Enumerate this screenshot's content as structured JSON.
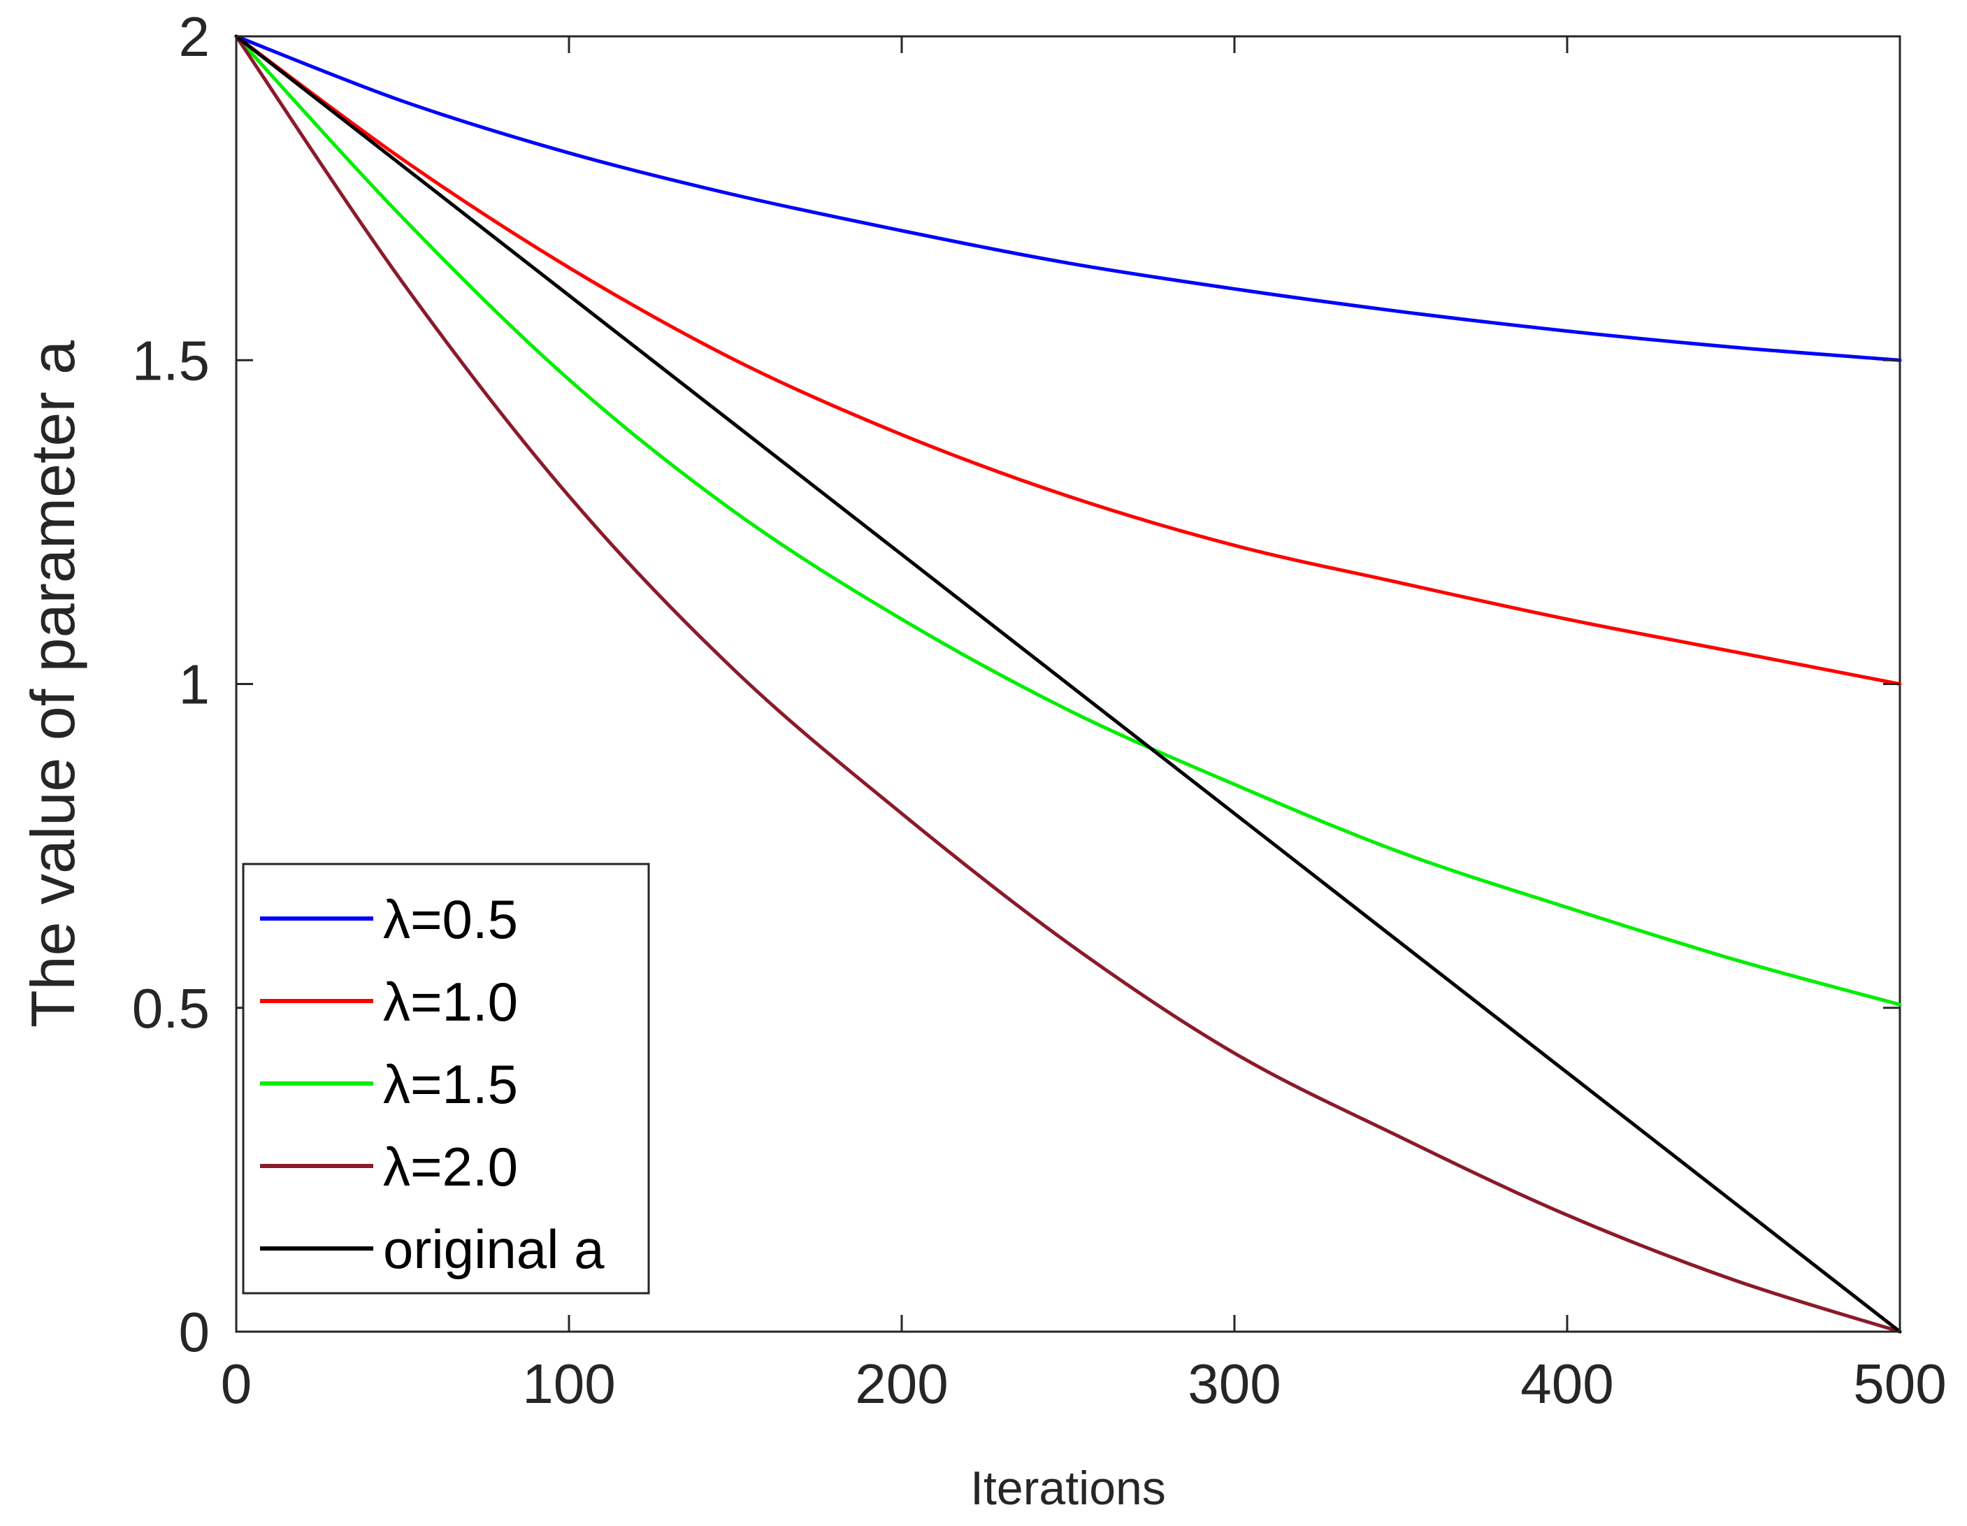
{
  "chart_data": {
    "type": "line",
    "title": "",
    "xlabel": "Iterations",
    "ylabel": "The value of parameter a",
    "xlim": [
      0,
      500
    ],
    "ylim": [
      0,
      2
    ],
    "xticks": [
      0,
      100,
      200,
      300,
      400,
      500
    ],
    "xtick_labels": [
      "0",
      "100",
      "200",
      "300",
      "400",
      "500"
    ],
    "yticks": [
      0,
      0.5,
      1,
      1.5,
      2
    ],
    "ytick_labels": [
      "0",
      "0.5",
      "1",
      "1.5",
      "2"
    ],
    "grid": false,
    "legend_position": "bottom-left",
    "x": [
      0,
      50,
      100,
      150,
      200,
      250,
      300,
      350,
      400,
      450,
      500
    ],
    "series": [
      {
        "name": "λ=0.5",
        "color": "#0000ff",
        "values": [
          2.0,
          1.9,
          1.82,
          1.755,
          1.7,
          1.65,
          1.61,
          1.575,
          1.545,
          1.52,
          1.5
        ]
      },
      {
        "name": "λ=1.0",
        "color": "#ff0000",
        "values": [
          2.0,
          1.81,
          1.643,
          1.5,
          1.385,
          1.29,
          1.214,
          1.156,
          1.1,
          1.05,
          1.0
        ]
      },
      {
        "name": "λ=1.5",
        "color": "#00ee00",
        "values": [
          2.0,
          1.72,
          1.47,
          1.265,
          1.1,
          0.96,
          0.845,
          0.74,
          0.655,
          0.575,
          0.505
        ]
      },
      {
        "name": "λ=2.0",
        "color": "#8b1a2a",
        "values": [
          2.0,
          1.62,
          1.29,
          1.02,
          0.8,
          0.6,
          0.43,
          0.3,
          0.18,
          0.08,
          0.0
        ]
      },
      {
        "name": "original a",
        "color": "#000000",
        "values": [
          2.0,
          1.8,
          1.6,
          1.4,
          1.2,
          1.0,
          0.8,
          0.6,
          0.4,
          0.2,
          0.0
        ]
      }
    ]
  }
}
